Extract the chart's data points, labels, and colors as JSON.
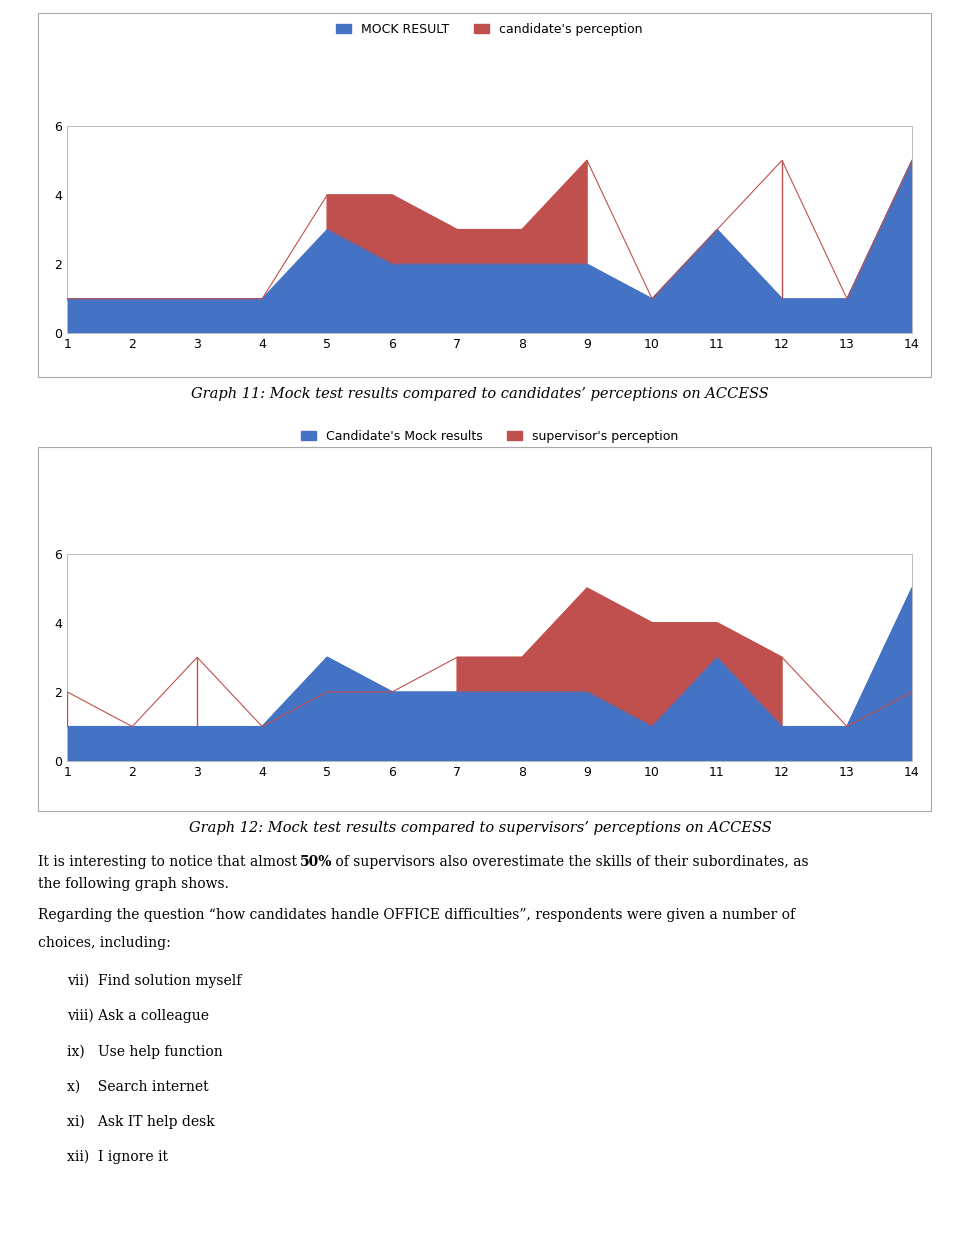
{
  "chart1": {
    "x": [
      1,
      2,
      3,
      4,
      5,
      6,
      7,
      8,
      9,
      10,
      11,
      12,
      13,
      14
    ],
    "mock_result": [
      1,
      1,
      1,
      1,
      3,
      2,
      2,
      2,
      2,
      1,
      3,
      1,
      1,
      5
    ],
    "perception": [
      1,
      1,
      1,
      1,
      4,
      4,
      3,
      3,
      5,
      1,
      3,
      5,
      1,
      5
    ],
    "mock_color": "#4472C4",
    "perception_color": "#C0504D",
    "legend1": "MOCK RESULT",
    "legend2": "candidate's perception",
    "ylim": [
      0,
      6
    ],
    "yticks": [
      0,
      2,
      4,
      6
    ],
    "caption": "Graph 11: Mock test results compared to candidates’ perceptions on ACCESS"
  },
  "chart2": {
    "x": [
      1,
      2,
      3,
      4,
      5,
      6,
      7,
      8,
      9,
      10,
      11,
      12,
      13,
      14
    ],
    "mock_result": [
      1,
      1,
      1,
      1,
      3,
      2,
      2,
      2,
      2,
      1,
      3,
      1,
      1,
      5
    ],
    "perception": [
      2,
      1,
      3,
      1,
      2,
      2,
      3,
      3,
      5,
      4,
      4,
      3,
      1,
      2
    ],
    "mock_color": "#4472C4",
    "perception_color": "#C0504D",
    "legend1": "Candidate's Mock results",
    "legend2": "supervisor's perception",
    "ylim": [
      0,
      6
    ],
    "yticks": [
      0,
      2,
      4,
      6
    ],
    "caption": "Graph 12: Mock test results compared to supervisors’ perceptions on ACCESS"
  },
  "bg_color": "#FFFFFF",
  "border_color": "#AAAAAA",
  "caption1_text": "Graph 11: Mock test results compared to candidates’ perceptions on ACCESS",
  "caption2_text": "Graph 12: Mock test results compared to supervisors’ perceptions on ACCESS",
  "intertext_pre": "It is interesting to notice that almost ",
  "intertext_bold": "50%",
  "intertext_post": " of supervisors also overestimate the skills of their subordinates, as",
  "intertext_line2": "the following graph shows.",
  "footer_lines": [
    "Regarding the question “how candidates handle OFFICE difficulties”, respondents were given a number of",
    "choices, including:",
    "vii)  Find solution myself",
    "viii) Ask a colleague",
    "ix)   Use help function",
    "x)    Search internet",
    "xi)   Ask IT help desk",
    "xii)  I ignore it"
  ]
}
